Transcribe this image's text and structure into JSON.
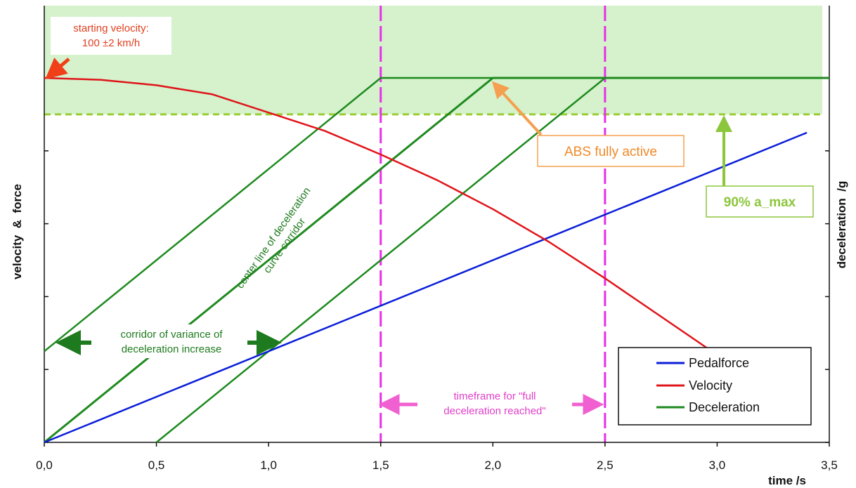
{
  "chart_data": {
    "type": "line",
    "title": "",
    "xlabel": "time /s",
    "ylabel_left": "velocity  &  force",
    "ylabel_right": "deceleration  /g",
    "xlim": [
      0,
      3.5
    ],
    "ylim": [
      0,
      1.0
    ],
    "x_ticks": [
      "0,0",
      "0,5",
      "1,0",
      "1,5",
      "2,0",
      "2,5",
      "3,0",
      "3,5"
    ],
    "x_tick_values": [
      0,
      0.5,
      1.0,
      1.5,
      2.0,
      2.5,
      3.0,
      3.5
    ],
    "y_tick_values": [
      0,
      0.2,
      0.4,
      0.6,
      0.8,
      1.0
    ],
    "shaded_band": {
      "y_from": 0.9,
      "y_to": 1.2,
      "color": "#d5f2cc"
    },
    "threshold_y": 0.9,
    "vlines": [
      1.5,
      2.5
    ],
    "series": [
      {
        "name": "Pedalforce",
        "color": "#0a1ed8",
        "x": [
          0,
          3.4
        ],
        "y": [
          0,
          0.85
        ]
      },
      {
        "name": "Velocity",
        "color": "#e0141a",
        "x": [
          0,
          0.25,
          0.5,
          0.75,
          1.0,
          1.25,
          1.5,
          1.75,
          2.0,
          2.25,
          2.5,
          2.75,
          3.0,
          3.1
        ],
        "y": [
          1.0,
          0.995,
          0.98,
          0.955,
          0.905,
          0.855,
          0.79,
          0.72,
          0.64,
          0.55,
          0.45,
          0.345,
          0.24,
          0.2
        ]
      },
      {
        "name": "Deceleration",
        "color": "#1e8a1e",
        "x": [
          0,
          1.5,
          3.5
        ],
        "y": [
          0.25,
          1.0,
          1.0
        ]
      },
      {
        "name": "",
        "color": "#1e8a1e",
        "x": [
          0,
          2.0,
          3.5
        ],
        "y": [
          0,
          1.0,
          1.0
        ]
      },
      {
        "name": "",
        "color": "#1e8a1e",
        "x": [
          0.5,
          2.5,
          3.5
        ],
        "y": [
          0,
          1.0,
          1.0
        ]
      }
    ],
    "legend_placement": "bottom-right",
    "legend": [
      "Pedalforce",
      "Velocity",
      "Deceleration"
    ],
    "annotations": {
      "starting_velocity": [
        "starting velocity:",
        "100 ±2 km/h"
      ],
      "abs": "ABS fully active",
      "amax": "90% a_max",
      "center_line": [
        "center line of deceleration",
        "curve corridor"
      ],
      "corridor": [
        "corridor of variance of",
        "deceleration increase"
      ],
      "timeframe": [
        "timeframe for \"full",
        "deceleration reached\""
      ]
    }
  }
}
